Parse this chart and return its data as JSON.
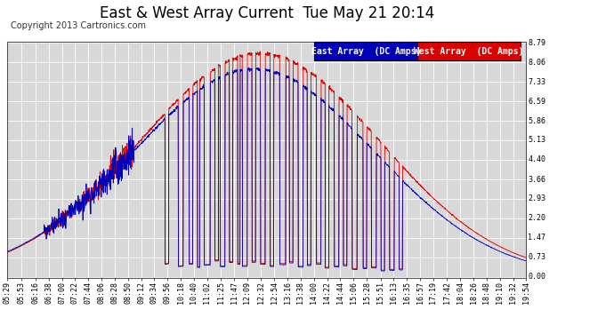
{
  "title": "East & West Array Current  Tue May 21 20:14",
  "copyright": "Copyright 2013 Cartronics.com",
  "legend_east": "East Array  (DC Amps)",
  "legend_west": "West Array  (DC Amps)",
  "east_color": "#0000bb",
  "west_color": "#dd0000",
  "legend_east_bg": "#0000bb",
  "legend_west_bg": "#dd0000",
  "bg_color": "#ffffff",
  "plot_bg_color": "#d8d8d8",
  "grid_color": "#ffffff",
  "yticks": [
    0.0,
    0.73,
    1.47,
    2.2,
    2.93,
    3.66,
    4.4,
    5.13,
    5.86,
    6.59,
    7.33,
    8.06,
    8.79
  ],
  "ymax": 8.79,
  "ymin": 0.0,
  "title_fontsize": 12,
  "copyright_fontsize": 7,
  "tick_fontsize": 6,
  "legend_fontsize": 7
}
